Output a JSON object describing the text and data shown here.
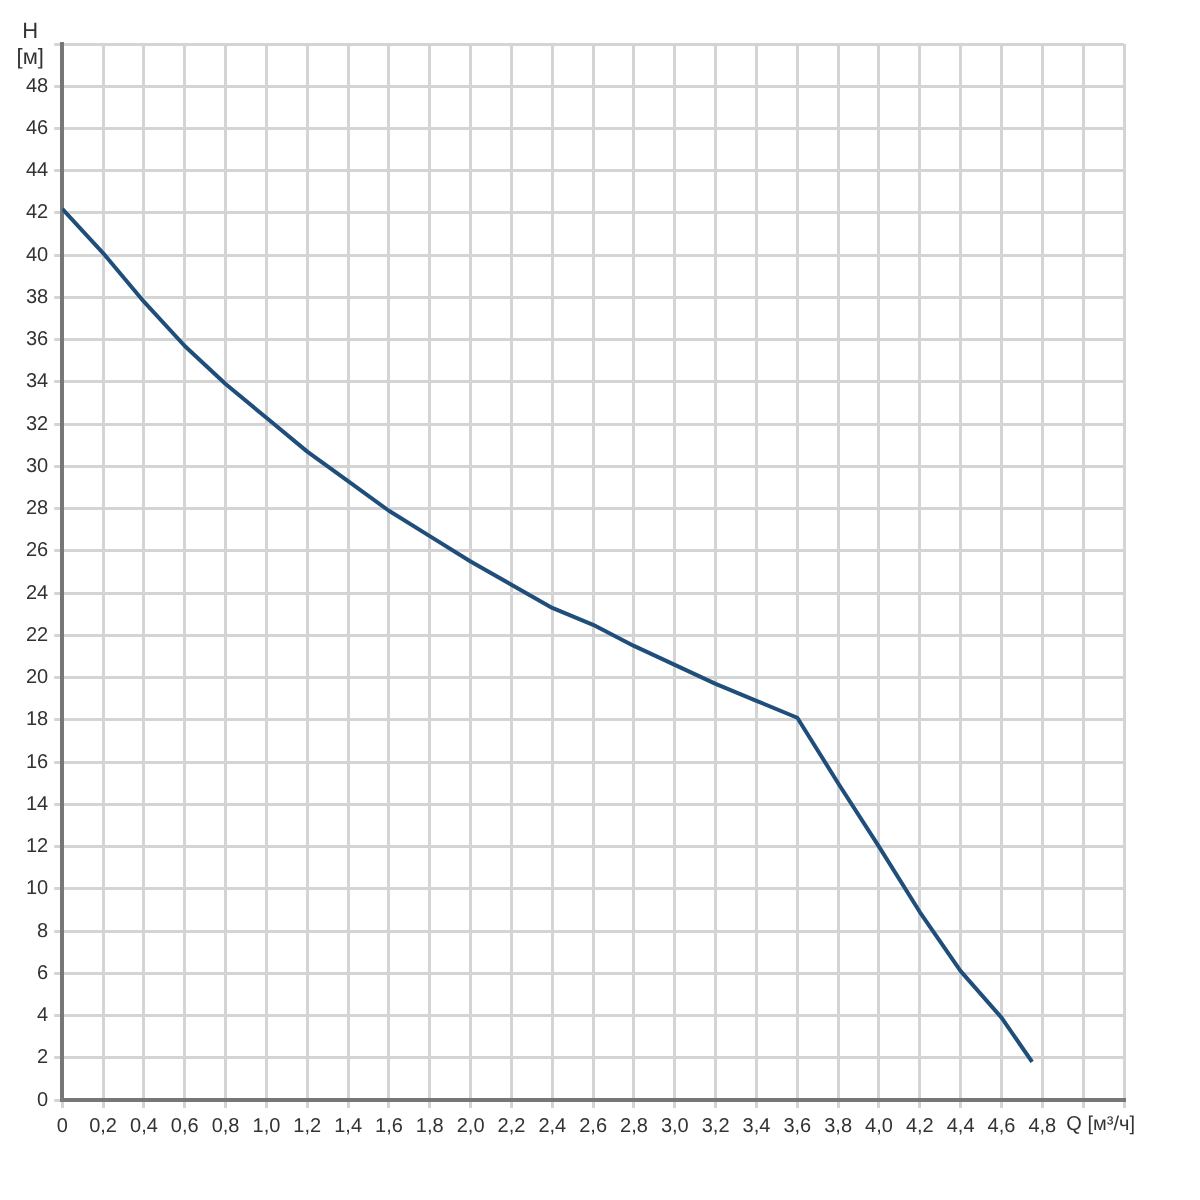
{
  "chart_data": {
    "type": "line",
    "xlabel": "Q [м³/ч]",
    "ylabel": "H [м]",
    "x": [
      0,
      0.2,
      0.4,
      0.6,
      0.8,
      1.0,
      1.2,
      1.4,
      1.6,
      1.8,
      2.0,
      2.2,
      2.4,
      2.6,
      2.8,
      3.0,
      3.2,
      3.4,
      3.6,
      3.8,
      4.0,
      4.2,
      4.4,
      4.6,
      4.75
    ],
    "series": [
      {
        "color": "#1f4e7a",
        "values": [
          42.2,
          40.1,
          37.8,
          35.7,
          33.9,
          32.3,
          30.7,
          29.3,
          27.9,
          26.7,
          25.5,
          24.4,
          23.3,
          22.5,
          21.5,
          20.6,
          19.7,
          18.9,
          18.1,
          15.0,
          12.0,
          8.9,
          6.1,
          3.9,
          1.8
        ]
      }
    ],
    "xlim": [
      0,
      5.2
    ],
    "xticks": [
      0,
      {
        "value": 0.2,
        "label": "0,2"
      },
      {
        "value": 0.4,
        "label": "0,4"
      },
      {
        "value": 0.6,
        "label": "0,6"
      },
      {
        "value": 0.8,
        "label": "0,8"
      },
      {
        "value": 1.0,
        "label": "1,0"
      },
      {
        "value": 1.2,
        "label": "1,2"
      },
      {
        "value": 1.4,
        "label": "1,4"
      },
      {
        "value": 1.6,
        "label": "1,6"
      },
      {
        "value": 1.8,
        "label": "1,8"
      },
      {
        "value": 2.0,
        "label": "2,0"
      },
      {
        "value": 2.2,
        "label": "2,2"
      },
      {
        "value": 2.4,
        "label": "2,4"
      },
      {
        "value": 2.6,
        "label": "2,6"
      },
      {
        "value": 2.8,
        "label": "2,8"
      },
      {
        "value": 3.0,
        "label": "3,0"
      },
      {
        "value": 3.2,
        "label": "3,2"
      },
      {
        "value": 3.4,
        "label": "3,4"
      },
      {
        "value": 3.6,
        "label": "3,6"
      },
      {
        "value": 3.8,
        "label": "3,8"
      },
      {
        "value": 4.0,
        "label": "4,0"
      },
      {
        "value": 4.2,
        "label": "4,2"
      },
      {
        "value": 4.4,
        "label": "4,4"
      },
      {
        "value": 4.6,
        "label": "4,6"
      },
      {
        "value": 4.8,
        "label": "4,8"
      },
      {
        "value": 5.0,
        "label": null
      },
      {
        "value": 5.2,
        "label": null
      }
    ],
    "ylim": [
      0,
      50
    ],
    "yticks": [
      0,
      2,
      4,
      6,
      8,
      10,
      12,
      14,
      16,
      18,
      20,
      22,
      24,
      26,
      28,
      30,
      32,
      34,
      36,
      38,
      40,
      42,
      44,
      46,
      48,
      {
        "value": 50,
        "label": null
      }
    ],
    "grid": true,
    "legend": false,
    "marker": "none",
    "line_style": "solid"
  }
}
